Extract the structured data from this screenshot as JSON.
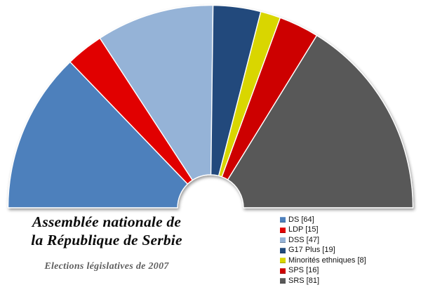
{
  "title": {
    "line1": "Assemblée nationale de",
    "line2": "la République de Serbie"
  },
  "subtitle": "Elections législatives de 2007",
  "chart_data": {
    "type": "pie",
    "variant": "semicircle-donut-hemicycle",
    "title": "Assemblée nationale de la République de Serbie",
    "subtitle": "Elections législatives de 2007",
    "total_seats": 250,
    "categories": [
      "DS",
      "LDP",
      "DSS",
      "G17 Plus",
      "Minorités ethniques",
      "SPS",
      "SRS"
    ],
    "values": [
      64,
      15,
      47,
      19,
      8,
      16,
      81
    ],
    "series": [
      {
        "name": "DS",
        "seats": 64,
        "color": "#4d80bc"
      },
      {
        "name": "LDP",
        "seats": 15,
        "color": "#e10303"
      },
      {
        "name": "DSS",
        "seats": 47,
        "color": "#95b3d7"
      },
      {
        "name": "G17 Plus",
        "seats": 19,
        "color": "#204a7b"
      },
      {
        "name": "Minorités ethniques",
        "seats": 8,
        "color": "#d9d600"
      },
      {
        "name": "SPS",
        "seats": 16,
        "color": "#cd0000"
      },
      {
        "name": "SRS",
        "seats": 81,
        "color": "#595959"
      }
    ],
    "arc_start_deg": 180,
    "arc_end_deg": 0,
    "legend_position": "bottom-right",
    "grid": false
  }
}
